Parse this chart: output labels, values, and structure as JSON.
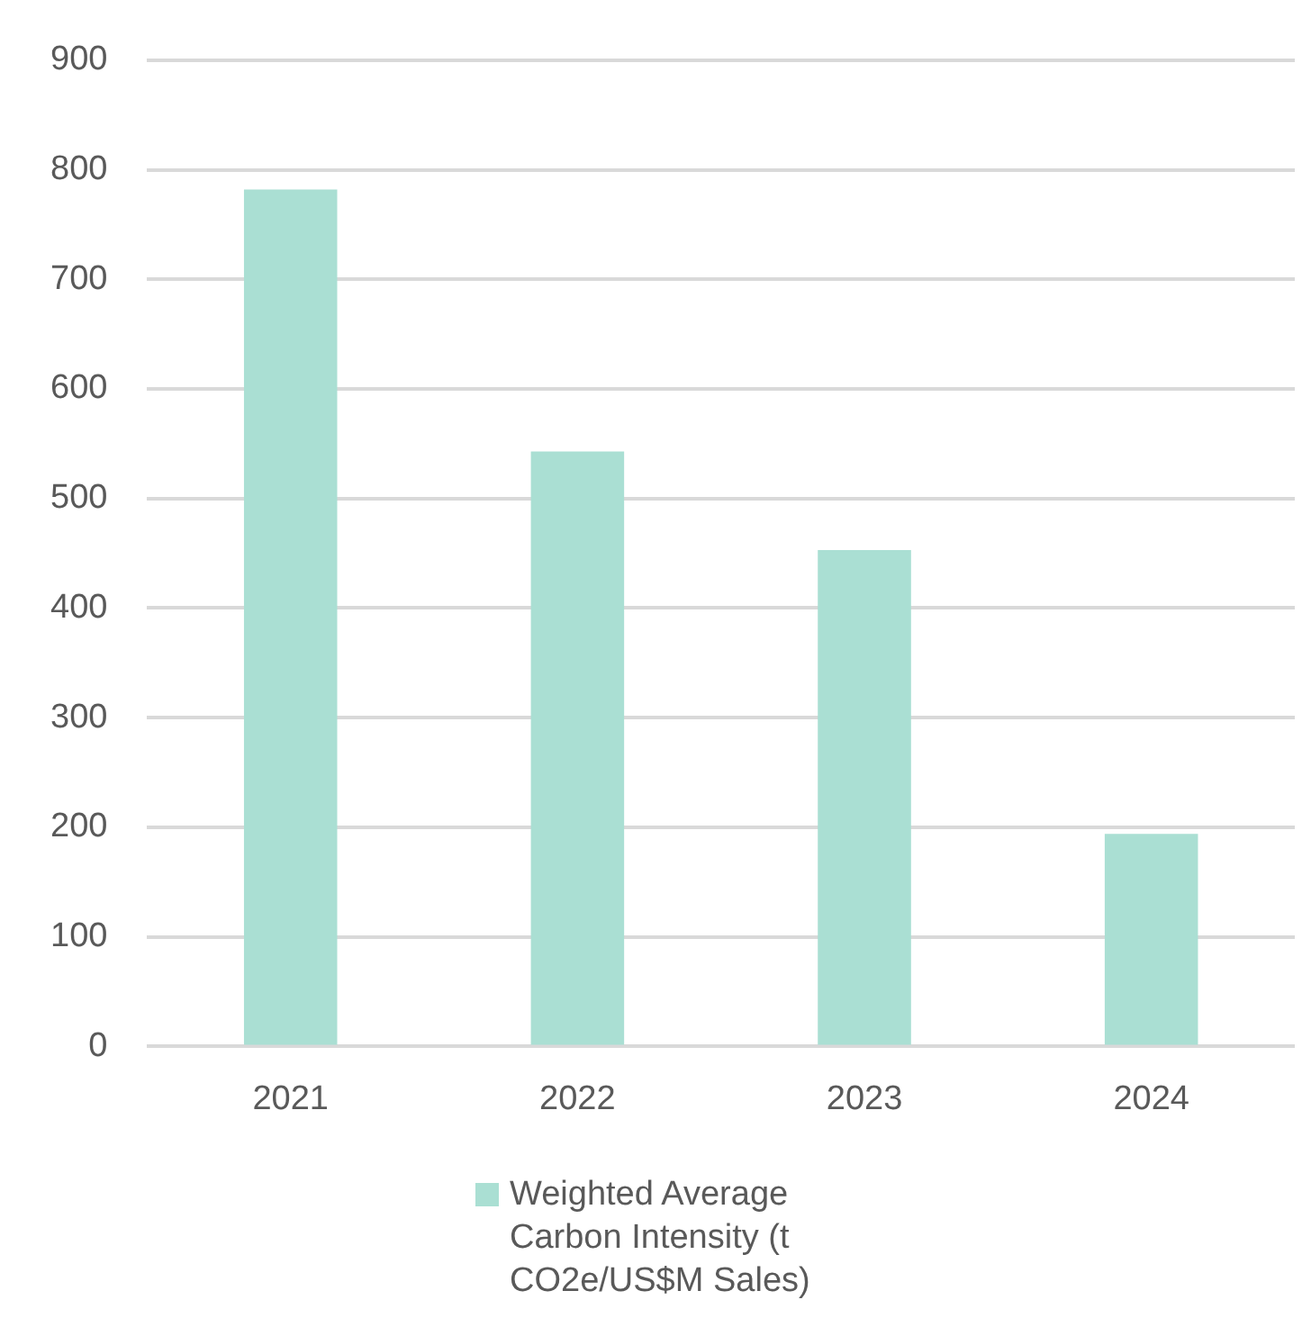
{
  "chart_data": {
    "type": "bar",
    "categories": [
      "2021",
      "2022",
      "2023",
      "2024"
    ],
    "series": [
      {
        "name": "Weighted Average Carbon Intensity (t CO2e/US$M Sales)",
        "color": "#aadfd3",
        "values": [
          782,
          543,
          453,
          194
        ]
      }
    ],
    "ylim": [
      0,
      900
    ],
    "yticks": [
      0,
      100,
      200,
      300,
      400,
      500,
      600,
      700,
      800,
      900
    ],
    "grid": "y",
    "legend": "bottom"
  }
}
